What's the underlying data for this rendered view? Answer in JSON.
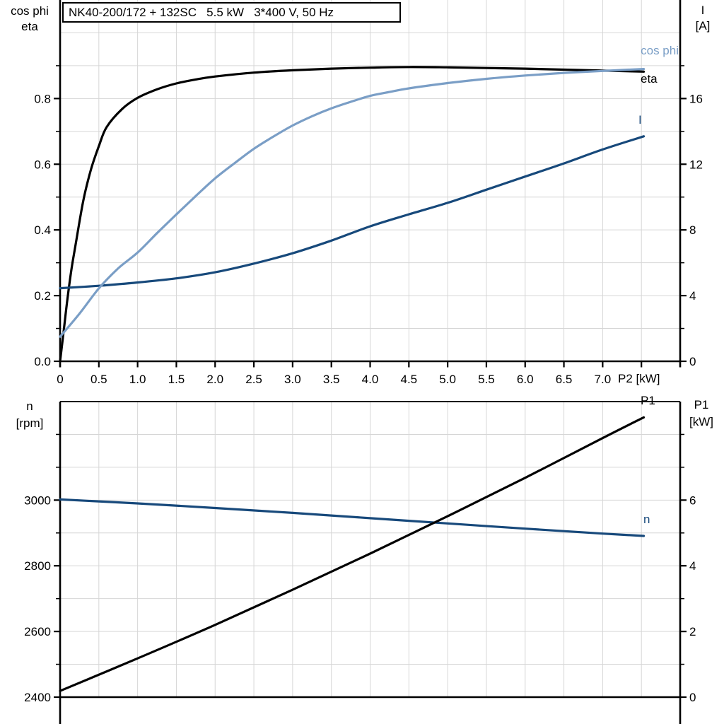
{
  "title_box": {
    "text": "NK40-200/172 + 132SC   5.5 kW   3*400 V, 50 Hz"
  },
  "colors": {
    "black": "#000000",
    "light_blue": "#7A9EC6",
    "dark_blue": "#17497B",
    "grid": "#D6D6D6",
    "axis": "#000000",
    "background": "#FFFFFF"
  },
  "chart_data": [
    {
      "id": "motor-electrical-curves",
      "type": "line",
      "title": "NK40-200/172 + 132SC   5.5 kW   3*400 V, 50 Hz",
      "xlabel": "P2 [kW]",
      "x_range": [
        0,
        8
      ],
      "grid": true,
      "x_tick_values": [
        0,
        0.5,
        1,
        1.5,
        2,
        2.5,
        3,
        3.5,
        4,
        4.5,
        5,
        5.5,
        6,
        6.5,
        7
      ],
      "x_tick_labels": [
        "0",
        "0.5",
        "1.0",
        "1.5",
        "2.0",
        "2.5",
        "3.0",
        "3.5",
        "4.0",
        "4.5",
        "5.0",
        "5.5",
        "6.0",
        "6.5",
        "7.0"
      ],
      "x_minor_tick_values": [
        7.5
      ],
      "left_axis": {
        "label_lines": [
          "cos phi",
          "eta"
        ],
        "range": [
          0,
          1.1
        ],
        "tick_values": [
          0,
          0.2,
          0.4,
          0.6,
          0.8
        ],
        "tick_labels": [
          "0.0",
          "0.2",
          "0.4",
          "0.6",
          "0.8"
        ],
        "minor_tick_values": [
          0.1,
          0.3,
          0.5,
          0.7,
          0.9
        ]
      },
      "right_axis": {
        "label_lines": [
          "I",
          "[A]"
        ],
        "range": [
          0,
          22
        ],
        "tick_values": [
          0,
          4,
          8,
          12,
          16
        ],
        "tick_labels": [
          "0",
          "4",
          "8",
          "12",
          "16"
        ],
        "minor_tick_values": [
          2,
          6,
          10,
          14,
          18
        ]
      },
      "series": [
        {
          "name": "eta",
          "label": "eta",
          "axis": "left",
          "color": "#000000",
          "points": [
            [
              0,
              0
            ],
            [
              0.05,
              0.1
            ],
            [
              0.1,
              0.2
            ],
            [
              0.15,
              0.285
            ],
            [
              0.2,
              0.355
            ],
            [
              0.3,
              0.49
            ],
            [
              0.4,
              0.585
            ],
            [
              0.5,
              0.655
            ],
            [
              0.6,
              0.713
            ],
            [
              0.8,
              0.768
            ],
            [
              1.0,
              0.802
            ],
            [
              1.25,
              0.828
            ],
            [
              1.5,
              0.846
            ],
            [
              1.75,
              0.858
            ],
            [
              2.0,
              0.867
            ],
            [
              2.5,
              0.879
            ],
            [
              3.0,
              0.886
            ],
            [
              3.5,
              0.891
            ],
            [
              4.0,
              0.894
            ],
            [
              4.5,
              0.896
            ],
            [
              5.0,
              0.895
            ],
            [
              5.5,
              0.893
            ],
            [
              6.0,
              0.891
            ],
            [
              6.5,
              0.888
            ],
            [
              7.0,
              0.885
            ],
            [
              7.53,
              0.882
            ]
          ]
        },
        {
          "name": "I",
          "label": "I",
          "axis": "right",
          "color": "#17497B",
          "points": [
            [
              0,
              4.45
            ],
            [
              0.5,
              4.6
            ],
            [
              1.0,
              4.8
            ],
            [
              1.5,
              5.05
            ],
            [
              2.0,
              5.42
            ],
            [
              2.5,
              5.95
            ],
            [
              3.0,
              6.58
            ],
            [
              3.5,
              7.35
            ],
            [
              4.0,
              8.22
            ],
            [
              4.5,
              8.95
            ],
            [
              5.0,
              9.65
            ],
            [
              5.5,
              10.45
            ],
            [
              6.0,
              11.25
            ],
            [
              6.5,
              12.05
            ],
            [
              7.0,
              12.9
            ],
            [
              7.53,
              13.7
            ]
          ]
        },
        {
          "name": "cos phi",
          "label": "cos phi",
          "axis": "left",
          "color": "#7A9EC6",
          "points": [
            [
              0,
              0.075
            ],
            [
              0.25,
              0.145
            ],
            [
              0.5,
              0.222
            ],
            [
              0.75,
              0.283
            ],
            [
              1.0,
              0.331
            ],
            [
              1.25,
              0.39
            ],
            [
              1.5,
              0.447
            ],
            [
              1.75,
              0.503
            ],
            [
              2.0,
              0.557
            ],
            [
              2.25,
              0.603
            ],
            [
              2.5,
              0.647
            ],
            [
              2.75,
              0.684
            ],
            [
              3.0,
              0.718
            ],
            [
              3.25,
              0.746
            ],
            [
              3.5,
              0.77
            ],
            [
              3.75,
              0.79
            ],
            [
              4.0,
              0.808
            ],
            [
              4.25,
              0.82
            ],
            [
              4.5,
              0.831
            ],
            [
              5.0,
              0.847
            ],
            [
              5.5,
              0.86
            ],
            [
              6.0,
              0.87
            ],
            [
              6.5,
              0.878
            ],
            [
              7.0,
              0.884
            ],
            [
              7.53,
              0.89
            ]
          ]
        }
      ]
    },
    {
      "id": "motor-speed-power-curves",
      "type": "line",
      "xlabel": "",
      "x_range": [
        0,
        8
      ],
      "grid": true,
      "left_axis": {
        "label_lines": [
          "n",
          "[rpm]"
        ],
        "range": [
          2400,
          3300
        ],
        "tick_values": [
          2400,
          2600,
          2800,
          3000
        ],
        "tick_labels": [
          "2400",
          "2600",
          "2800",
          "3000"
        ],
        "minor_tick_values": [
          2500,
          2700,
          2900,
          3100,
          3200
        ]
      },
      "right_axis": {
        "label_lines": [
          "P1",
          "[kW]"
        ],
        "range": [
          0,
          9
        ],
        "tick_values": [
          0,
          2,
          4,
          6
        ],
        "tick_labels": [
          "0",
          "2",
          "4",
          "6"
        ],
        "minor_tick_values": [
          1,
          3,
          5,
          7,
          8
        ]
      },
      "series": [
        {
          "name": "n",
          "label": "n",
          "axis": "left",
          "color": "#17497B",
          "points": [
            [
              0,
              3002
            ],
            [
              1,
              2990
            ],
            [
              2,
              2976
            ],
            [
              3,
              2961
            ],
            [
              4,
              2945
            ],
            [
              5,
              2929
            ],
            [
              6,
              2913
            ],
            [
              7,
              2898
            ],
            [
              7.53,
              2891
            ]
          ]
        },
        {
          "name": "P1",
          "label": "P1",
          "axis": "right",
          "color": "#000000",
          "points": [
            [
              0,
              0.19
            ],
            [
              1,
              1.18
            ],
            [
              2,
              2.2
            ],
            [
              3,
              3.27
            ],
            [
              4,
              4.37
            ],
            [
              5,
              5.51
            ],
            [
              6,
              6.68
            ],
            [
              7,
              7.89
            ],
            [
              7.53,
              8.52
            ]
          ]
        }
      ]
    }
  ]
}
